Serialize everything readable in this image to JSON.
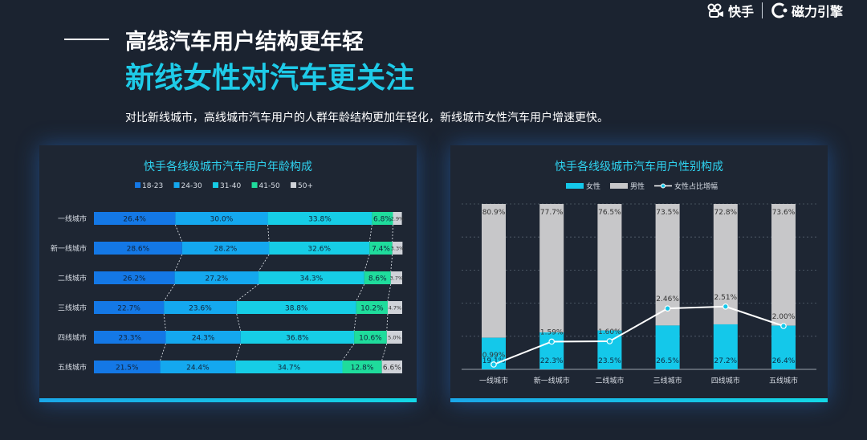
{
  "brand": {
    "kuaishou": "快手",
    "magnetic": "磁力引擎"
  },
  "header": {
    "title": "高线汽车用户结构更年轻",
    "highlight": "新线女性对汽车更关注",
    "subtitle": "对比新线城市，高线城市汽车用户的人群年龄结构更加年轻化，新线城市女性汽车用户增速更快。"
  },
  "chart_data": [
    {
      "type": "bar",
      "orientation": "horizontal",
      "stacked": "100%",
      "title": "快手各线级城市汽车用户年龄构成",
      "categories": [
        "一线城市",
        "新一线城市",
        "二线城市",
        "三线城市",
        "四线城市",
        "五线城市"
      ],
      "series": [
        {
          "name": "18-23",
          "color": "#1478e6",
          "values": [
            26.4,
            28.6,
            26.2,
            22.7,
            23.3,
            21.5
          ]
        },
        {
          "name": "24-30",
          "color": "#14a8ef",
          "values": [
            30.0,
            28.2,
            27.2,
            23.6,
            24.3,
            24.4
          ]
        },
        {
          "name": "31-40",
          "color": "#16cde6",
          "values": [
            33.8,
            32.6,
            34.3,
            38.8,
            36.8,
            34.7
          ]
        },
        {
          "name": "41-50",
          "color": "#1fdc9c",
          "values": [
            6.8,
            7.4,
            8.6,
            10.2,
            10.6,
            12.8
          ]
        },
        {
          "name": "50+",
          "color": "#cfd2d8",
          "values": [
            2.9,
            3.3,
            3.7,
            4.7,
            5.0,
            6.6
          ]
        }
      ],
      "value_suffix": "%",
      "legend": "top"
    },
    {
      "type": "bar",
      "stacked": "100%",
      "title": "快手各线级城市汽车用户性别构成",
      "categories": [
        "一线城市",
        "新一线城市",
        "二线城市",
        "三线城市",
        "四线城市",
        "五线城市"
      ],
      "series": [
        {
          "name": "女性",
          "color": "#14c8ea",
          "values": [
            19.1,
            22.3,
            23.5,
            26.5,
            27.2,
            26.4
          ]
        },
        {
          "name": "男性",
          "color": "#c7c7c9",
          "values": [
            80.9,
            77.7,
            76.5,
            73.5,
            72.8,
            73.6
          ]
        }
      ],
      "line_series": {
        "name": "女性占比增幅",
        "color": "#ffffff",
        "values": [
          0.99,
          1.59,
          1.6,
          2.46,
          2.51,
          2.0
        ]
      },
      "value_suffix": "%",
      "legend": "top",
      "grid": true
    }
  ]
}
